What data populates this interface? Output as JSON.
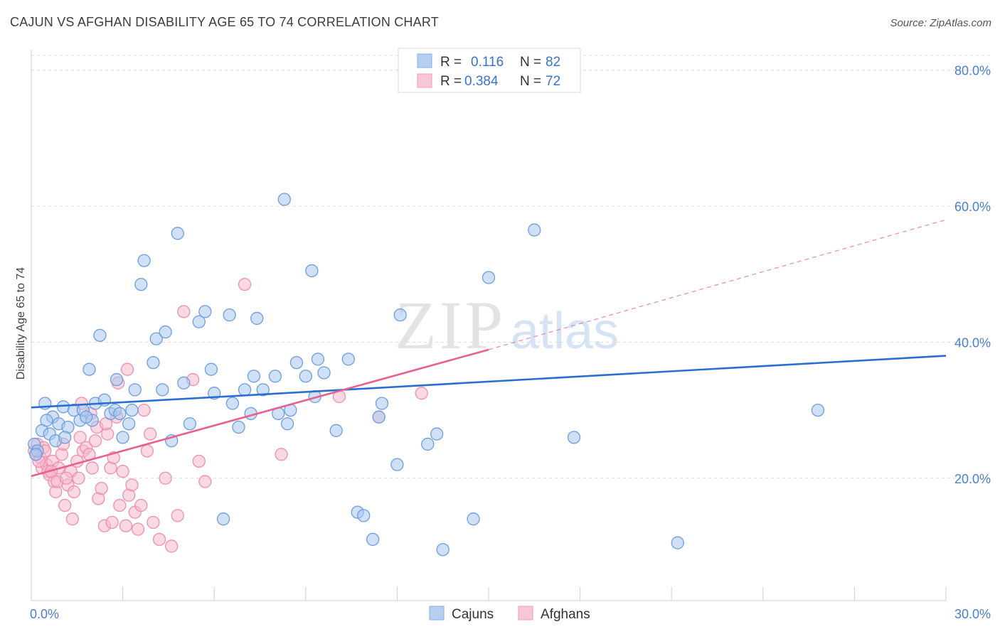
{
  "title": "CAJUN VS AFGHAN DISABILITY AGE 65 TO 74 CORRELATION CHART",
  "source": "Source: ZipAtlas.com",
  "watermark": {
    "zip": "ZIP",
    "atlas": "atlas"
  },
  "colors": {
    "cajun_fill": "#a9c6ee",
    "cajun_stroke": "#6c9ee0",
    "cajun_line": "#2a6fd0",
    "afghan_fill": "#f6b9cc",
    "afghan_stroke": "#ee8fb0",
    "afghan_line": "#e8608f",
    "grid": "#dcdcdc",
    "axis_label": "#4a7fd0"
  },
  "legend": {
    "rows": [
      {
        "r_label": "R = ",
        "r_value": "0.116",
        "n_label": "N = ",
        "n_value": "82"
      },
      {
        "r_label": "R = ",
        "r_value": "0.384",
        "n_label": "N = ",
        "n_value": "72"
      }
    ]
  },
  "bottom_legend": [
    "Cajuns",
    "Afghans"
  ],
  "chart_data": {
    "type": "scatter",
    "title": "CAJUN VS AFGHAN DISABILITY AGE 65 TO 74 CORRELATION CHART",
    "xlabel": "",
    "ylabel": "Disability Age 65 to 74",
    "xlim": [
      0,
      30
    ],
    "ylim": [
      2,
      83
    ],
    "x_ticks": [
      {
        "value": 0,
        "label": "0.0%"
      },
      {
        "value": 30,
        "label": "30.0%"
      }
    ],
    "y_ticks": [
      {
        "value": 20,
        "label": "20.0%"
      },
      {
        "value": 40,
        "label": "40.0%"
      },
      {
        "value": 60,
        "label": "60.0%"
      },
      {
        "value": 80,
        "label": "80.0%"
      }
    ],
    "grid": true,
    "legend_position": "top-center",
    "series": [
      {
        "name": "Cajuns",
        "r": 0.116,
        "n": 82,
        "trend": {
          "x": [
            0,
            30
          ],
          "y": [
            30.4,
            38.0
          ],
          "dashed_from_x": null
        },
        "x": [
          0.1,
          0.2,
          0.35,
          0.45,
          0.6,
          0.7,
          0.8,
          0.9,
          1.05,
          1.2,
          1.4,
          1.6,
          1.7,
          1.9,
          2.0,
          2.1,
          2.25,
          2.4,
          2.6,
          2.75,
          2.9,
          3.0,
          3.2,
          3.4,
          3.6,
          3.7,
          4.0,
          4.1,
          4.4,
          4.6,
          4.8,
          5.0,
          5.5,
          5.7,
          5.9,
          6.0,
          6.3,
          6.5,
          6.8,
          7.0,
          7.2,
          7.4,
          7.6,
          8.0,
          8.1,
          8.3,
          8.5,
          8.7,
          9.0,
          9.2,
          9.4,
          9.6,
          10.0,
          10.4,
          10.7,
          10.9,
          11.2,
          11.5,
          12.0,
          13.0,
          13.5,
          14.5,
          15.0,
          16.5,
          17.8,
          21.2,
          25.8,
          0.15,
          0.5,
          1.1,
          1.8,
          2.8,
          3.3,
          4.3,
          5.2,
          6.6,
          7.3,
          8.4,
          9.3,
          11.4,
          12.1,
          13.3
        ],
        "y": [
          25.0,
          24.0,
          27.0,
          31.0,
          26.5,
          29.0,
          25.5,
          28.0,
          30.5,
          27.5,
          30.0,
          28.5,
          30.0,
          36.0,
          28.5,
          31.0,
          41.0,
          31.5,
          29.5,
          30.0,
          29.5,
          26.0,
          28.0,
          33.0,
          48.5,
          52.0,
          37.0,
          40.5,
          41.5,
          25.5,
          56.0,
          34.0,
          43.0,
          44.5,
          36.0,
          32.5,
          14.0,
          44.0,
          27.5,
          33.0,
          29.5,
          43.5,
          33.0,
          35.0,
          29.5,
          61.0,
          30.0,
          37.0,
          35.0,
          50.5,
          37.5,
          35.5,
          27.0,
          37.5,
          15.0,
          14.5,
          11.0,
          31.0,
          22.0,
          25.0,
          9.5,
          14.0,
          49.5,
          56.5,
          26.0,
          10.5,
          30.0,
          23.5,
          28.5,
          26.0,
          29.0,
          34.5,
          30.0,
          33.0,
          28.0,
          31.0,
          35.0,
          28.0,
          32.0,
          29.0,
          44.0,
          26.5
        ],
        "note": "values read approximately from the plot"
      },
      {
        "name": "Afghans",
        "r": 0.384,
        "n": 72,
        "trend": {
          "x": [
            0,
            15
          ],
          "y": [
            20.3,
            38.9
          ],
          "dashed_to": {
            "x": 30,
            "y": 58.0
          }
        },
        "x": [
          0.1,
          0.15,
          0.2,
          0.3,
          0.35,
          0.4,
          0.5,
          0.55,
          0.6,
          0.7,
          0.75,
          0.8,
          0.9,
          1.0,
          1.05,
          1.1,
          1.2,
          1.3,
          1.4,
          1.5,
          1.55,
          1.6,
          1.7,
          1.8,
          1.9,
          2.0,
          2.1,
          2.2,
          2.3,
          2.4,
          2.5,
          2.6,
          2.7,
          2.8,
          2.9,
          3.0,
          3.1,
          3.2,
          3.3,
          3.4,
          3.5,
          3.6,
          3.7,
          3.8,
          3.9,
          4.0,
          4.2,
          4.4,
          4.6,
          4.8,
          5.0,
          5.3,
          5.5,
          5.7,
          7.0,
          8.2,
          10.1,
          11.4,
          12.8,
          0.25,
          0.45,
          0.65,
          0.85,
          1.15,
          1.35,
          1.65,
          1.95,
          2.15,
          2.45,
          2.65,
          2.85,
          3.15
        ],
        "y": [
          24.0,
          23.5,
          25.0,
          23.0,
          21.5,
          24.5,
          22.0,
          21.0,
          20.5,
          22.5,
          19.5,
          18.0,
          21.5,
          23.5,
          25.0,
          16.0,
          19.0,
          21.0,
          18.0,
          22.5,
          20.0,
          26.0,
          24.0,
          24.5,
          23.5,
          21.5,
          25.5,
          17.0,
          18.5,
          13.0,
          26.5,
          21.5,
          23.0,
          29.0,
          16.0,
          21.0,
          13.0,
          17.5,
          19.0,
          15.0,
          12.5,
          16.0,
          30.0,
          24.0,
          26.5,
          13.5,
          11.0,
          20.0,
          10.0,
          14.5,
          44.5,
          34.5,
          22.5,
          19.5,
          48.5,
          23.5,
          32.0,
          29.0,
          32.5,
          22.5,
          24.0,
          21.0,
          19.5,
          20.0,
          14.0,
          31.0,
          29.5,
          27.5,
          28.0,
          13.5,
          34.0,
          36.0
        ],
        "note": "values read approximately from the plot"
      }
    ]
  }
}
